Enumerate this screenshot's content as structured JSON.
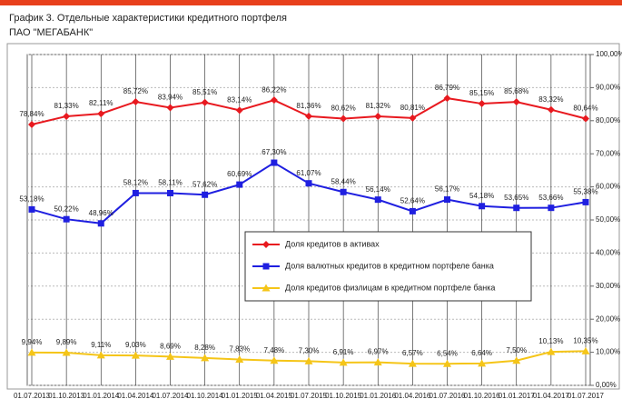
{
  "chart_data": {
    "type": "line",
    "title": "График 3. Отдельные характеристики кредитного портфеля",
    "subtitle": "ПАО \"МЕГАБАНК\"",
    "categories": [
      "01.07.2013",
      "01.10.2013",
      "01.01.2014",
      "01.04.2014",
      "01.07.2014",
      "01.10.2014",
      "01.01.2015",
      "01.04.2015",
      "01.07.2015",
      "01.10.2015",
      "01.01.2016",
      "01.04.2016",
      "01.07.2016",
      "01.10.2016",
      "01.01.2017",
      "01.04.2017",
      "01.07.2017"
    ],
    "series": [
      {
        "name": "Доля кредитов в активах",
        "color": "#e8191f",
        "marker": "diamond",
        "values": [
          78.84,
          81.33,
          82.11,
          85.72,
          83.94,
          85.51,
          83.14,
          86.22,
          81.36,
          80.62,
          81.32,
          80.81,
          86.79,
          85.15,
          85.68,
          83.32,
          80.64
        ],
        "value_labels": [
          "78,84%",
          "81,33%",
          "82,11%",
          "85,72%",
          "83,94%",
          "85,51%",
          "83,14%",
          "86,22%",
          "81,36%",
          "80,62%",
          "81,32%",
          "80,81%",
          "86,79%",
          "85,15%",
          "85,68%",
          "83,32%",
          "80,64%"
        ]
      },
      {
        "name": "Доля валютных кредитов в кредитном портфеле банка",
        "color": "#1f1fe0",
        "marker": "square",
        "values": [
          53.18,
          50.22,
          48.96,
          58.12,
          58.11,
          57.62,
          60.69,
          67.3,
          61.07,
          58.44,
          56.14,
          52.64,
          56.17,
          54.18,
          53.65,
          53.66,
          55.38
        ],
        "value_labels": [
          "53,18%",
          "50,22%",
          "48,96%",
          "58,12%",
          "58,11%",
          "57,62%",
          "60,69%",
          "67,30%",
          "61,07%",
          "58,44%",
          "56,14%",
          "52,64%",
          "56,17%",
          "54,18%",
          "53,65%",
          "53,66%",
          "55,38%"
        ]
      },
      {
        "name": "Доля кредитов физлицам в кредитном портфеле банка",
        "color": "#f5c518",
        "marker": "triangle",
        "values": [
          9.94,
          9.89,
          9.11,
          9.03,
          8.69,
          8.28,
          7.83,
          7.48,
          7.3,
          6.91,
          6.97,
          6.57,
          6.54,
          6.64,
          7.5,
          10.13,
          10.35
        ],
        "value_labels": [
          "9,94%",
          "9,89%",
          "9,11%",
          "9,03%",
          "8,69%",
          "8,28%",
          "7,83%",
          "7,48%",
          "7,30%",
          "6,91%",
          "6,97%",
          "6,57%",
          "6,54%",
          "6,64%",
          "7,50%",
          "10,13%",
          "10,35%"
        ]
      }
    ],
    "ylim": [
      0,
      100
    ],
    "yticks": [
      {
        "value": 0,
        "label": "0,00%"
      },
      {
        "value": 10,
        "label": "10,00%"
      },
      {
        "value": 20,
        "label": "20,00%"
      },
      {
        "value": 30,
        "label": "30,00%"
      },
      {
        "value": 40,
        "label": "40,00%"
      },
      {
        "value": 50,
        "label": "50,00%"
      },
      {
        "value": 60,
        "label": "60,00%"
      },
      {
        "value": 70,
        "label": "70,00%"
      },
      {
        "value": 80,
        "label": "80,00%"
      },
      {
        "value": 90,
        "label": "90,00%"
      },
      {
        "value": 100,
        "label": "100,00%"
      }
    ],
    "grid": true
  }
}
